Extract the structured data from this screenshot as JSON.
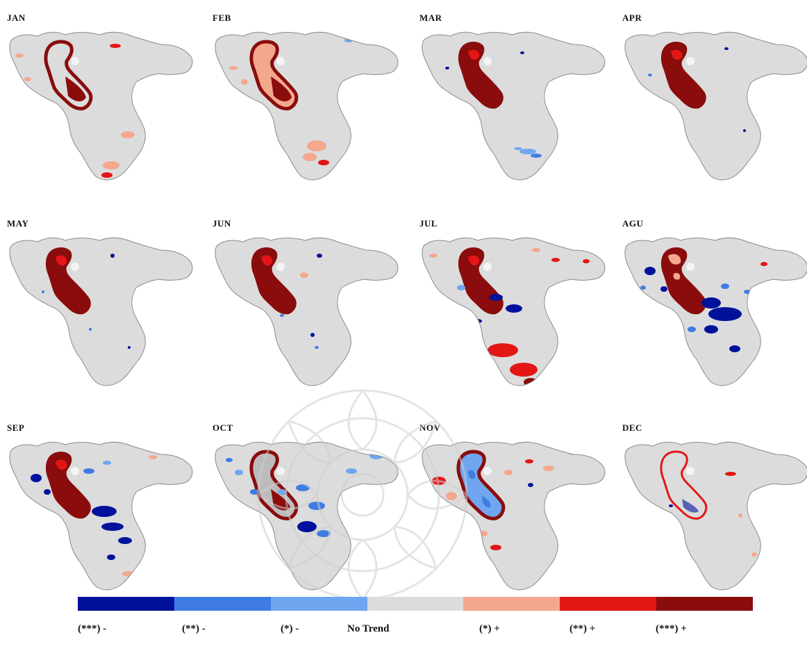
{
  "panels": [
    {
      "label": "JAN"
    },
    {
      "label": "FEB"
    },
    {
      "label": "MAR"
    },
    {
      "label": "APR"
    },
    {
      "label": "MAY"
    },
    {
      "label": "JUN"
    },
    {
      "label": "JUL"
    },
    {
      "label": "AGU"
    },
    {
      "label": "SEP"
    },
    {
      "label": "OCT"
    },
    {
      "label": "NOV"
    },
    {
      "label": "DEC"
    }
  ],
  "legend": {
    "classes": [
      {
        "label": "(***) -",
        "color": "#00129c"
      },
      {
        "label": "(**) -",
        "color": "#3e7ce4"
      },
      {
        "label": "(*) -",
        "color": "#6fa6ef"
      },
      {
        "label": "No Trend",
        "color": "#dcdcdc"
      },
      {
        "label": "(*) +",
        "color": "#f3a88d"
      },
      {
        "label": "(**) +",
        "color": "#e31616"
      },
      {
        "label": "(***) +",
        "color": "#8a0c0c"
      }
    ]
  },
  "colors": {
    "land": "#dcdcdc",
    "outline": "#8a8a8a",
    "lake_ring": "#8a0c0c"
  }
}
